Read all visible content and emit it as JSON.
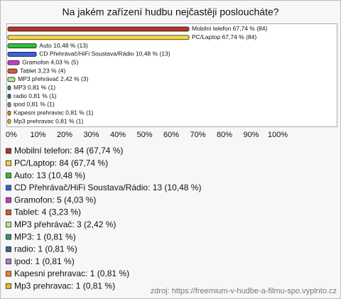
{
  "chart_data": {
    "type": "bar",
    "orientation": "horizontal",
    "title": "Na jakém zařízení hudbu nejčastěji posloucháte?",
    "categories": [
      "Mobilní telefon",
      "PC/Laptop",
      "Auto",
      "CD Přehrávač/HiFi Soustava/Rádio",
      "Gramofon",
      "Tablet",
      "MP3 přehrávač",
      "MP3",
      "radio",
      "ipod",
      "Kapesni prehravac",
      "Mp3 prehravac"
    ],
    "values": [
      67.74,
      67.74,
      10.48,
      10.48,
      4.03,
      3.23,
      2.42,
      0.81,
      0.81,
      0.81,
      0.81,
      0.81
    ],
    "value_labels": [
      "Mobilní telefon 67,74 % (84)",
      "PC/Laptop 67,74 % (84)",
      "Auto 10,48 % (13)",
      "CD Přehrávač/HiFi Soustava/Rádio 10,48 % (13)",
      "Gramofon 4,03 % (5)",
      "Tablet 3,23 % (4)",
      "MP3 přehrávač 2,42 % (3)",
      "MP3 0,81 % (1)",
      "radio 0,81 % (1)",
      "ipod 0,81 % (1)",
      "Kapesni prehravac 0,81 % (1)",
      "Mp3 prehravac 0,81 % (1)"
    ],
    "colors": [
      "#b83224",
      "#f5d442",
      "#2fbf3a",
      "#3a5ee0",
      "#c838c8",
      "#e0553a",
      "#b8e890",
      "#2e9a78",
      "#2f6f80",
      "#b27cc8",
      "#e8862a",
      "#f0b830"
    ],
    "legend_labels": [
      "Mobilní telefon: 84 (67,74 %)",
      "PC/Laptop: 84 (67,74 %)",
      "Auto: 13 (10,48 %)",
      "CD Přehrávač/HiFi Soustava/Rádio: 13 (10,48 %)",
      "Gramofon: 5 (4,03 %)",
      "Tablet: 4 (3,23 %)",
      "MP3 přehrávač: 3 (2,42 %)",
      "MP3: 1 (0,81 %)",
      "radio: 1 (0,81 %)",
      "ipod: 1 (0,81 %)",
      "Kapesni prehravac: 1 (0,81 %)",
      "Mp3 prehravac: 1 (0,81 %)"
    ],
    "xlim": [
      0,
      124
    ],
    "xticks": [
      {
        "value": 0,
        "label": "0%"
      },
      {
        "value": 10,
        "label": "10%"
      },
      {
        "value": 20,
        "label": "20%"
      },
      {
        "value": 30,
        "label": "30%"
      },
      {
        "value": 40,
        "label": "40%"
      },
      {
        "value": 50,
        "label": "50%"
      },
      {
        "value": 60,
        "label": "60%"
      },
      {
        "value": 70,
        "label": "70%"
      },
      {
        "value": 80,
        "label": "80%"
      },
      {
        "value": 90,
        "label": "90%"
      },
      {
        "value": 100,
        "label": "100%"
      }
    ],
    "grid": false,
    "source": "zdroj: https://freemium-v-hudbe-a-filmu-spo.vyplnto.cz"
  }
}
